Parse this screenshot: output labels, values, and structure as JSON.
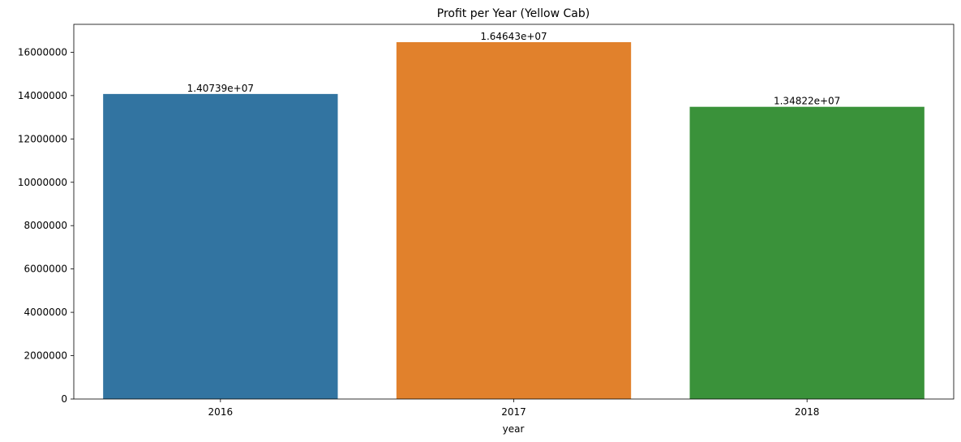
{
  "chart_data": {
    "type": "bar",
    "title": "Profit per Year (Yellow Cab)",
    "xlabel": "year",
    "ylabel": "",
    "categories": [
      "2016",
      "2017",
      "2018"
    ],
    "values": [
      14073900,
      16464300,
      13482200
    ],
    "data_labels": [
      "1.40739e+07",
      "1.64643e+07",
      "1.34822e+07"
    ],
    "colors": [
      "#3274a1",
      "#e1812c",
      "#3a923a"
    ],
    "ylim": [
      0,
      17287500
    ],
    "yticks": [
      0,
      2000000,
      4000000,
      6000000,
      8000000,
      10000000,
      12000000,
      14000000,
      16000000
    ],
    "ytick_labels": [
      "0",
      "2000000",
      "4000000",
      "6000000",
      "8000000",
      "10000000",
      "12000000",
      "14000000",
      "16000000"
    ],
    "grid": false,
    "legend": "none"
  }
}
